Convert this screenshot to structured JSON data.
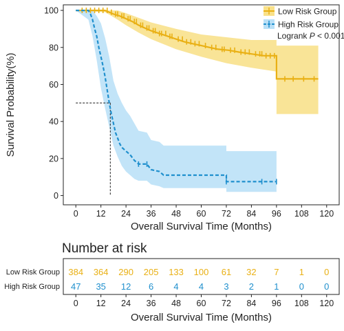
{
  "chart_data": [
    {
      "type": "line",
      "subtype": "kaplan-meier",
      "title": "",
      "xlabel": "Overall Survival Time (Months)",
      "ylabel": "Survival Probability(%)",
      "xlim": [
        -6,
        126
      ],
      "ylim": [
        -5,
        103
      ],
      "xticks": [
        0,
        12,
        24,
        36,
        48,
        60,
        72,
        84,
        96,
        108,
        120
      ],
      "yticks": [
        0,
        20,
        40,
        60,
        80,
        100
      ],
      "grid": false,
      "legend_position": "top-right",
      "annotation": {
        "prefix": "Logrank ",
        "p_symbol": "P",
        "suffix": " < 0.001"
      },
      "median_marker": {
        "x": 16.5,
        "y": 50
      },
      "series": [
        {
          "name": "Low Risk Group",
          "color": "#e9b014",
          "band_color": "#f7d96b",
          "line_style": "solid",
          "points": [
            [
              0,
              100
            ],
            [
              14,
              100
            ],
            [
              16,
              99
            ],
            [
              18,
              98
            ],
            [
              21,
              97
            ],
            [
              24,
              95.5
            ],
            [
              27,
              94
            ],
            [
              30,
              92
            ],
            [
              33,
              90.5
            ],
            [
              36,
              89
            ],
            [
              40,
              87.5
            ],
            [
              44,
              86
            ],
            [
              48,
              84.5
            ],
            [
              52,
              83
            ],
            [
              56,
              82
            ],
            [
              60,
              81
            ],
            [
              64,
              80
            ],
            [
              68,
              79
            ],
            [
              73,
              78.5
            ],
            [
              78,
              77.5
            ],
            [
              84,
              76.5
            ],
            [
              90,
              75.5
            ],
            [
              96,
              75.5
            ],
            [
              96,
              63
            ],
            [
              116,
              63
            ]
          ],
          "upper": [
            [
              0,
              100
            ],
            [
              14,
              100
            ],
            [
              20,
              100
            ],
            [
              24,
              98.5
            ],
            [
              30,
              96
            ],
            [
              36,
              93.5
            ],
            [
              48,
              90
            ],
            [
              60,
              87
            ],
            [
              72,
              85.5
            ],
            [
              84,
              84
            ],
            [
              96,
              84
            ],
            [
              96,
              81
            ],
            [
              116,
              81
            ]
          ],
          "lower": [
            [
              0,
              100
            ],
            [
              14,
              99
            ],
            [
              20,
              95
            ],
            [
              24,
              92
            ],
            [
              30,
              88
            ],
            [
              36,
              84.5
            ],
            [
              48,
              79
            ],
            [
              60,
              75
            ],
            [
              72,
              71.5
            ],
            [
              84,
              69
            ],
            [
              96,
              67
            ],
            [
              96,
              44
            ],
            [
              116,
              44
            ]
          ],
          "censor_x": [
            3,
            5,
            7,
            9,
            11,
            13,
            15,
            17,
            19,
            20,
            22,
            23,
            25,
            26,
            28,
            29,
            31,
            32,
            34,
            35,
            37,
            38,
            40,
            41,
            43,
            45,
            46,
            49,
            51,
            53,
            55,
            57,
            59,
            62,
            65,
            67,
            70,
            71,
            74,
            76,
            79,
            81,
            83,
            86,
            88,
            89,
            91,
            93,
            95,
            100,
            104,
            109,
            114
          ]
        },
        {
          "name": "High Risk Group",
          "color": "#1f8fcd",
          "band_color": "#a8d8f5",
          "line_style": "dashed",
          "points": [
            [
              0,
              100
            ],
            [
              6,
              100
            ],
            [
              7,
              98
            ],
            [
              8,
              95
            ],
            [
              9,
              90
            ],
            [
              10,
              86
            ],
            [
              11,
              80
            ],
            [
              12,
              75
            ],
            [
              13,
              70
            ],
            [
              14,
              64
            ],
            [
              15,
              57
            ],
            [
              16,
              50
            ],
            [
              17,
              44
            ],
            [
              18,
              39
            ],
            [
              19,
              34
            ],
            [
              20,
              31
            ],
            [
              21,
              28
            ],
            [
              22,
              26
            ],
            [
              24,
              24
            ],
            [
              26,
              22
            ],
            [
              28,
              19
            ],
            [
              30,
              17
            ],
            [
              34,
              17
            ],
            [
              36,
              14
            ],
            [
              40,
              13
            ],
            [
              42,
              11
            ],
            [
              72,
              11
            ],
            [
              72,
              7.5
            ],
            [
              96,
              7.5
            ]
          ],
          "upper": [
            [
              0,
              100
            ],
            [
              6,
              100
            ],
            [
              8,
              100
            ],
            [
              10,
              97
            ],
            [
              12,
              93
            ],
            [
              14,
              85
            ],
            [
              16,
              75
            ],
            [
              18,
              62
            ],
            [
              20,
              55
            ],
            [
              22,
              50
            ],
            [
              24,
              46
            ],
            [
              26,
              43
            ],
            [
              28,
              39
            ],
            [
              30,
              35
            ],
            [
              34,
              34
            ],
            [
              36,
              30
            ],
            [
              40,
              29
            ],
            [
              42,
              27
            ],
            [
              72,
              27
            ],
            [
              72,
              24
            ],
            [
              96,
              24
            ]
          ],
          "lower": [
            [
              0,
              100
            ],
            [
              6,
              95
            ],
            [
              8,
              86
            ],
            [
              10,
              73
            ],
            [
              12,
              58
            ],
            [
              14,
              47
            ],
            [
              16,
              37
            ],
            [
              18,
              27
            ],
            [
              20,
              21
            ],
            [
              22,
              16
            ],
            [
              24,
              13
            ],
            [
              26,
              11
            ],
            [
              28,
              9
            ],
            [
              30,
              8
            ],
            [
              34,
              8
            ],
            [
              36,
              6
            ],
            [
              40,
              5
            ],
            [
              42,
              4
            ],
            [
              72,
              4
            ],
            [
              72,
              2
            ],
            [
              96,
              2
            ]
          ],
          "censor_x": [
            30,
            34,
            72,
            89,
            96
          ]
        }
      ]
    },
    {
      "type": "table",
      "title": "Number at risk",
      "xlabel": "Overall Survival Time (Months)",
      "xticks": [
        0,
        12,
        24,
        36,
        48,
        60,
        72,
        84,
        96,
        108,
        120
      ],
      "rows": [
        {
          "name": "Low Risk Group",
          "color": "#e9b014",
          "values": [
            384,
            364,
            290,
            205,
            133,
            100,
            61,
            32,
            7,
            1,
            0
          ]
        },
        {
          "name": "High Risk Group",
          "color": "#1f8fcd",
          "values": [
            47,
            35,
            12,
            6,
            4,
            4,
            3,
            2,
            1,
            0,
            0
          ]
        }
      ]
    }
  ]
}
